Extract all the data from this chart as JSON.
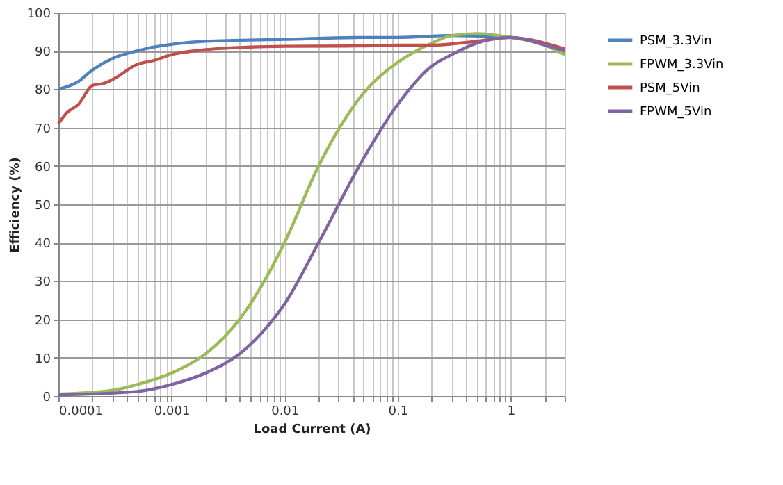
{
  "chart_data": {
    "type": "line",
    "xlabel": "Load Current (A)",
    "ylabel": "Efficiency (%)",
    "log": "x",
    "grid": true,
    "legend": "right",
    "line_style": "solid",
    "marker": "none",
    "xlim": [
      0.0001,
      3
    ],
    "ylim": [
      0,
      100
    ],
    "xticks": [
      {
        "value": 0.0001,
        "label": "0.0001"
      },
      {
        "value": 0.0002,
        "label": null
      },
      {
        "value": 0.0003,
        "label": null
      },
      {
        "value": 0.0004,
        "label": null
      },
      {
        "value": 0.0005,
        "label": null
      },
      {
        "value": 0.0006,
        "label": null
      },
      {
        "value": 0.0007,
        "label": null
      },
      {
        "value": 0.0008,
        "label": null
      },
      {
        "value": 0.0009,
        "label": null
      },
      {
        "value": 0.001,
        "label": "0.001"
      },
      {
        "value": 0.002,
        "label": null
      },
      {
        "value": 0.003,
        "label": null
      },
      {
        "value": 0.004,
        "label": null
      },
      {
        "value": 0.005,
        "label": null
      },
      {
        "value": 0.006,
        "label": null
      },
      {
        "value": 0.007,
        "label": null
      },
      {
        "value": 0.008,
        "label": null
      },
      {
        "value": 0.009,
        "label": null
      },
      {
        "value": 0.01,
        "label": "0.01"
      },
      {
        "value": 0.02,
        "label": null
      },
      {
        "value": 0.03,
        "label": null
      },
      {
        "value": 0.04,
        "label": null
      },
      {
        "value": 0.05,
        "label": null
      },
      {
        "value": 0.06,
        "label": null
      },
      {
        "value": 0.07,
        "label": null
      },
      {
        "value": 0.08,
        "label": null
      },
      {
        "value": 0.09,
        "label": null
      },
      {
        "value": 0.1,
        "label": "0.1"
      },
      {
        "value": 0.2,
        "label": null
      },
      {
        "value": 0.3,
        "label": null
      },
      {
        "value": 0.4,
        "label": null
      },
      {
        "value": 0.5,
        "label": null
      },
      {
        "value": 0.6,
        "label": null
      },
      {
        "value": 0.7,
        "label": null
      },
      {
        "value": 0.8,
        "label": null
      },
      {
        "value": 0.9,
        "label": null
      },
      {
        "value": 1,
        "label": "1"
      },
      {
        "value": 2,
        "label": null
      },
      {
        "value": 3,
        "label": null
      }
    ],
    "yticks": [
      0,
      10,
      20,
      30,
      40,
      50,
      60,
      70,
      80,
      90,
      100
    ],
    "series": [
      {
        "name": "PSM_3.3Vin",
        "color": "#4f81bd",
        "x": [
          0.0001,
          0.00015,
          0.0002,
          0.0003,
          0.0005,
          0.0007,
          0.001,
          0.002,
          0.01,
          0.05,
          0.1,
          0.3,
          1,
          2,
          3
        ],
        "values": [
          80,
          82,
          85,
          88,
          90,
          91,
          91.7,
          92.5,
          93,
          93.5,
          93.5,
          94,
          93.5,
          92,
          90
        ]
      },
      {
        "name": "FPWM_3.3Vin",
        "color": "#9bbb59",
        "x": [
          0.0001,
          0.0003,
          0.0005,
          0.001,
          0.002,
          0.004,
          0.01,
          0.02,
          0.05,
          0.1,
          0.2,
          0.3,
          0.5,
          1,
          2,
          3
        ],
        "values": [
          0.5,
          1.5,
          3,
          6,
          11,
          20,
          40,
          60,
          79,
          87,
          92,
          94,
          94.5,
          93.5,
          91.5,
          89
        ]
      },
      {
        "name": "PSM_5Vin",
        "color": "#c0504d",
        "x": [
          0.0001,
          0.00012,
          0.00015,
          0.0002,
          0.00025,
          0.0003,
          0.0005,
          0.0007,
          0.001,
          0.002,
          0.005,
          0.01,
          0.05,
          0.1,
          0.2,
          0.5,
          1,
          2,
          3
        ],
        "values": [
          71,
          74,
          76,
          81,
          81.5,
          82.5,
          86.5,
          87.5,
          89,
          90.3,
          91,
          91.2,
          91.3,
          91.5,
          91.5,
          92.5,
          93.5,
          92,
          90.5
        ]
      },
      {
        "name": "FPWM_5Vin",
        "color": "#8064a2",
        "x": [
          0.0001,
          0.0005,
          0.001,
          0.002,
          0.004,
          0.007,
          0.01,
          0.02,
          0.05,
          0.1,
          0.2,
          0.3,
          0.5,
          1,
          2,
          3
        ],
        "values": [
          0.3,
          1.2,
          3,
          6,
          11,
          18,
          24,
          40,
          62,
          76,
          86,
          89,
          92,
          93.5,
          91.5,
          90
        ]
      }
    ]
  }
}
